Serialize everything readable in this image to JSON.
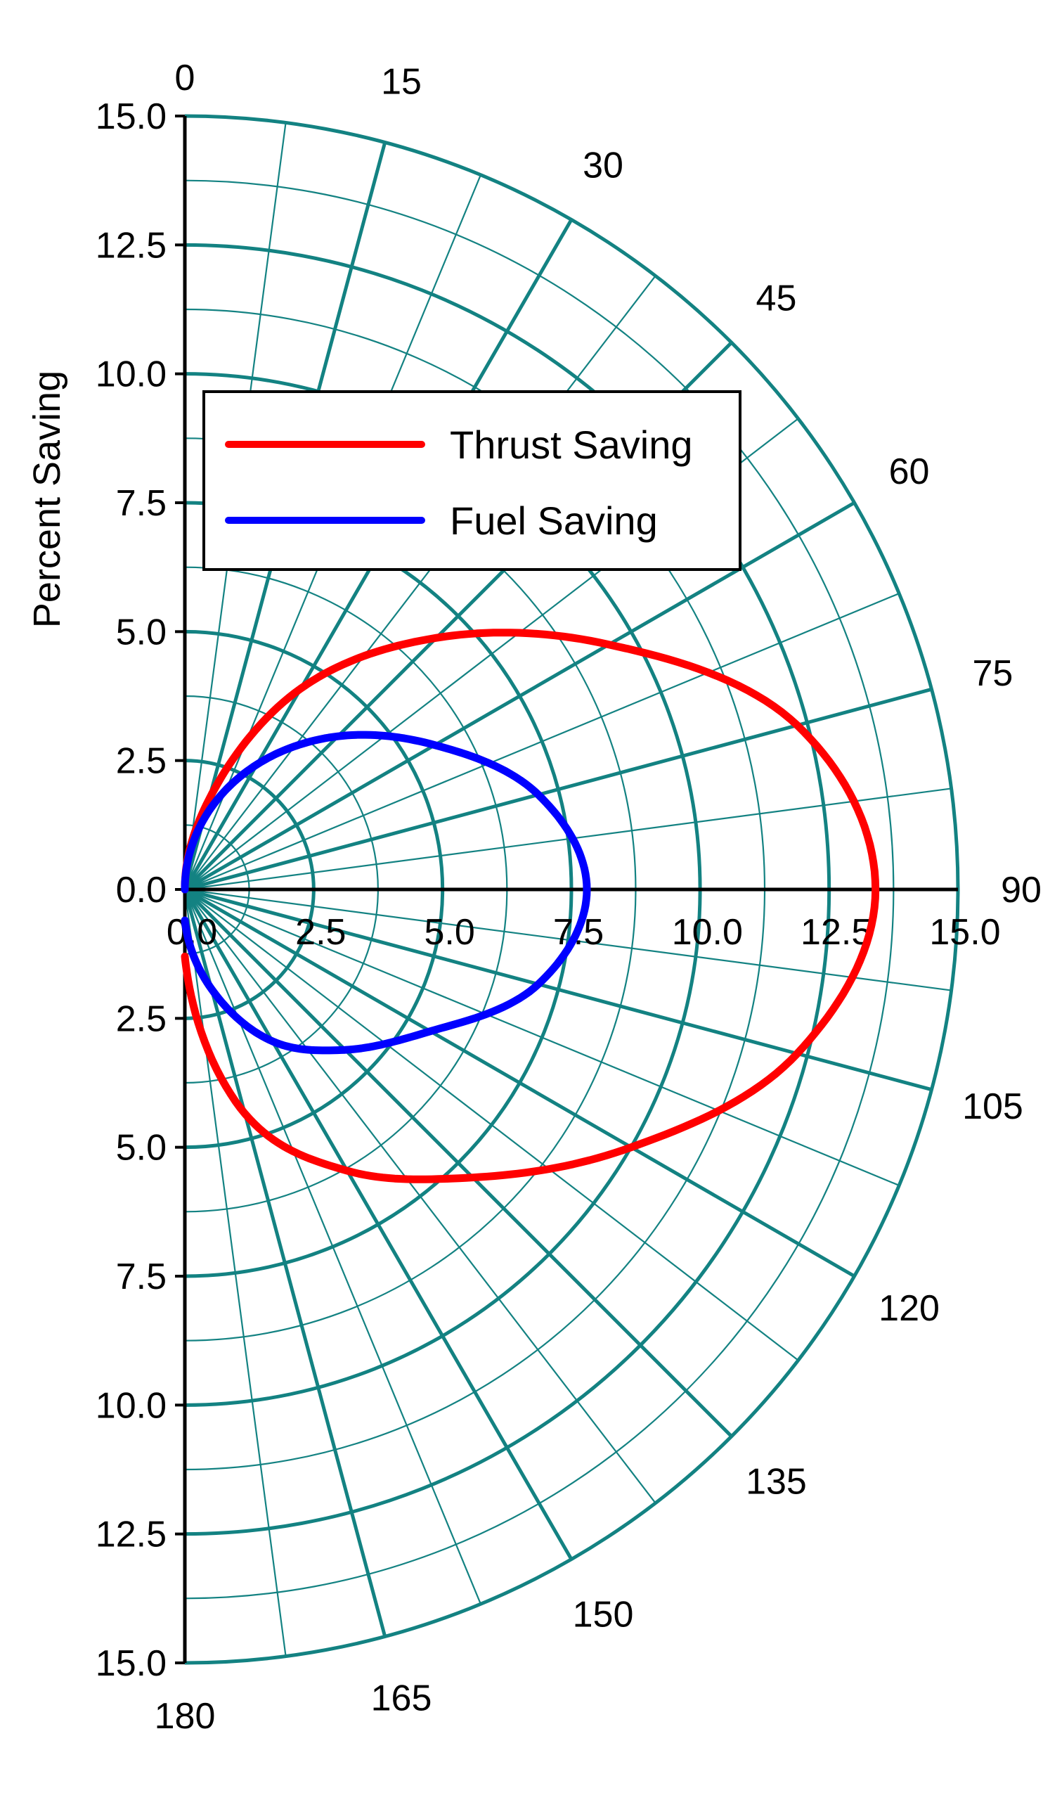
{
  "chart_data": {
    "type": "polar-line",
    "title": "",
    "ylabel": "Percent Saving",
    "r_range": [
      0,
      15
    ],
    "r_ticks": [
      "0.0",
      "2.5",
      "5.0",
      "7.5",
      "10.0",
      "12.5",
      "15.0"
    ],
    "r_minor_step": 1.25,
    "theta_range": [
      0,
      180
    ],
    "theta_ticks": [
      "0",
      "15",
      "30",
      "45",
      "60",
      "75",
      "90",
      "105",
      "120",
      "135",
      "150",
      "165",
      "180"
    ],
    "theta_minor_step": 7.5,
    "theta_zero": "top",
    "theta_direction": "clockwise",
    "grid": true,
    "grid_color": "#138282",
    "legend": {
      "placement": "upper-center"
    },
    "series": [
      {
        "name": "Thrust Saving",
        "color": "#ff0000",
        "theta": [
          0,
          15,
          30,
          45,
          60,
          75,
          90,
          105,
          120,
          135,
          150,
          165,
          180
        ],
        "r": [
          0.0,
          1.8,
          4.5,
          6.9,
          9.5,
          12.3,
          13.4,
          12.3,
          10.0,
          7.9,
          6.3,
          4.5,
          1.3
        ]
      },
      {
        "name": "Fuel Saving",
        "color": "#0000ff",
        "theta": [
          0,
          15,
          30,
          45,
          60,
          75,
          90,
          105,
          120,
          135,
          150,
          165,
          180
        ],
        "r": [
          0.0,
          1.4,
          2.8,
          4.2,
          5.6,
          7.1,
          7.8,
          7.1,
          5.5,
          4.4,
          3.4,
          2.0,
          0.6
        ]
      }
    ]
  }
}
